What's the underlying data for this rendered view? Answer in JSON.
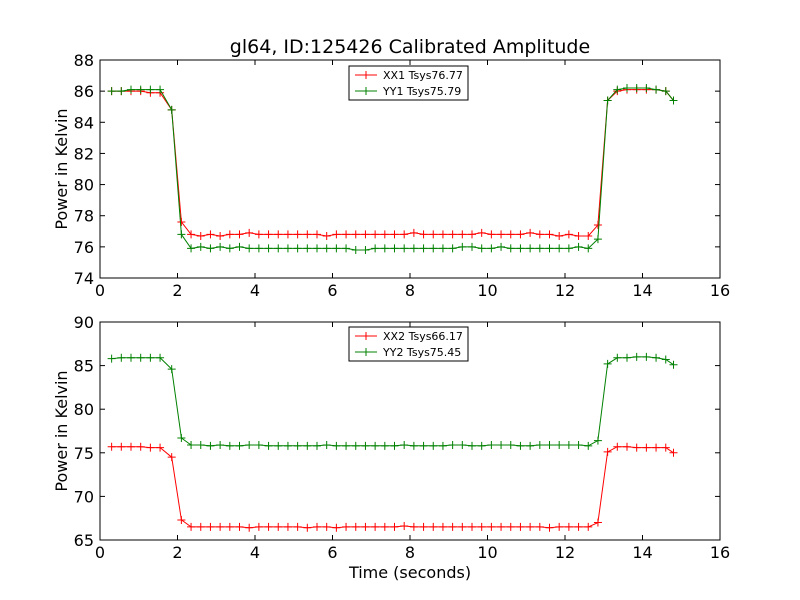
{
  "figure": {
    "title": "gl64, ID:125426 Calibrated Amplitude",
    "xlabel": "Time (seconds)"
  },
  "chart_data": [
    {
      "type": "line",
      "ylabel": "Power in Kelvin",
      "xlim": [
        0,
        16
      ],
      "ylim": [
        74,
        88
      ],
      "xticks": [
        0,
        2,
        4,
        6,
        8,
        10,
        12,
        14,
        16
      ],
      "yticks": [
        74,
        76,
        78,
        80,
        82,
        84,
        86,
        88
      ],
      "legend_position": "top-center",
      "grid": false,
      "x": [
        0.3,
        0.55,
        0.8,
        1.05,
        1.3,
        1.55,
        1.85,
        2.1,
        2.35,
        2.6,
        2.85,
        3.1,
        3.35,
        3.6,
        3.85,
        4.1,
        4.35,
        4.6,
        4.85,
        5.1,
        5.35,
        5.6,
        5.85,
        6.1,
        6.35,
        6.6,
        6.85,
        7.1,
        7.35,
        7.6,
        7.85,
        8.1,
        8.35,
        8.6,
        8.85,
        9.1,
        9.35,
        9.6,
        9.85,
        10.1,
        10.35,
        10.6,
        10.85,
        11.1,
        11.35,
        11.6,
        11.85,
        12.1,
        12.35,
        12.6,
        12.85,
        13.1,
        13.35,
        13.6,
        13.85,
        14.1,
        14.35,
        14.6,
        14.8
      ],
      "series": [
        {
          "name": "XX1 Tsys76.77",
          "color": "#ff0000",
          "values": [
            86.0,
            86.0,
            86.0,
            86.0,
            85.9,
            85.9,
            84.8,
            77.6,
            76.8,
            76.7,
            76.8,
            76.7,
            76.8,
            76.8,
            76.9,
            76.8,
            76.8,
            76.8,
            76.8,
            76.8,
            76.8,
            76.8,
            76.7,
            76.8,
            76.8,
            76.8,
            76.8,
            76.8,
            76.8,
            76.8,
            76.8,
            76.9,
            76.8,
            76.8,
            76.8,
            76.8,
            76.8,
            76.8,
            76.9,
            76.8,
            76.8,
            76.8,
            76.8,
            76.9,
            76.8,
            76.8,
            76.7,
            76.8,
            76.7,
            76.7,
            77.4,
            85.4,
            86.0,
            86.1,
            86.1,
            86.1,
            86.1,
            86.0,
            85.4
          ]
        },
        {
          "name": "YY1 Tsys75.79",
          "color": "#008000",
          "values": [
            86.0,
            86.0,
            86.1,
            86.1,
            86.1,
            86.1,
            84.8,
            76.8,
            75.9,
            76.0,
            75.9,
            76.0,
            75.9,
            76.0,
            75.9,
            75.9,
            75.9,
            75.9,
            75.9,
            75.9,
            75.9,
            75.9,
            75.9,
            75.9,
            75.9,
            75.8,
            75.8,
            75.9,
            75.9,
            75.9,
            75.9,
            75.9,
            75.9,
            75.9,
            75.9,
            75.9,
            76.0,
            76.0,
            75.9,
            75.9,
            76.0,
            75.9,
            75.9,
            75.9,
            75.9,
            75.9,
            75.9,
            75.9,
            76.0,
            75.9,
            76.5,
            85.4,
            86.1,
            86.2,
            86.2,
            86.2,
            86.1,
            86.0,
            85.4
          ]
        }
      ]
    },
    {
      "type": "line",
      "ylabel": "Power in Kelvin",
      "xlabel": "Time (seconds)",
      "xlim": [
        0,
        16
      ],
      "ylim": [
        65,
        90
      ],
      "xticks": [
        0,
        2,
        4,
        6,
        8,
        10,
        12,
        14,
        16
      ],
      "yticks": [
        65,
        70,
        75,
        80,
        85,
        90
      ],
      "legend_position": "top-center",
      "grid": false,
      "x": [
        0.3,
        0.55,
        0.8,
        1.05,
        1.3,
        1.55,
        1.85,
        2.1,
        2.35,
        2.6,
        2.85,
        3.1,
        3.35,
        3.6,
        3.85,
        4.1,
        4.35,
        4.6,
        4.85,
        5.1,
        5.35,
        5.6,
        5.85,
        6.1,
        6.35,
        6.6,
        6.85,
        7.1,
        7.35,
        7.6,
        7.85,
        8.1,
        8.35,
        8.6,
        8.85,
        9.1,
        9.35,
        9.6,
        9.85,
        10.1,
        10.35,
        10.6,
        10.85,
        11.1,
        11.35,
        11.6,
        11.85,
        12.1,
        12.35,
        12.6,
        12.85,
        13.1,
        13.35,
        13.6,
        13.85,
        14.1,
        14.35,
        14.6,
        14.8
      ],
      "series": [
        {
          "name": "XX2 Tsys66.17",
          "color": "#ff0000",
          "values": [
            75.7,
            75.7,
            75.7,
            75.7,
            75.6,
            75.6,
            74.5,
            67.3,
            66.5,
            66.5,
            66.5,
            66.5,
            66.5,
            66.5,
            66.4,
            66.5,
            66.5,
            66.5,
            66.5,
            66.5,
            66.4,
            66.5,
            66.5,
            66.4,
            66.5,
            66.5,
            66.5,
            66.5,
            66.5,
            66.5,
            66.6,
            66.5,
            66.5,
            66.5,
            66.5,
            66.5,
            66.5,
            66.5,
            66.5,
            66.5,
            66.5,
            66.5,
            66.5,
            66.5,
            66.5,
            66.4,
            66.5,
            66.5,
            66.5,
            66.5,
            67.0,
            75.1,
            75.7,
            75.7,
            75.6,
            75.6,
            75.6,
            75.6,
            75.0
          ]
        },
        {
          "name": "YY2 Tsys75.45",
          "color": "#008000",
          "values": [
            85.8,
            85.9,
            85.9,
            85.9,
            85.9,
            85.9,
            84.6,
            76.7,
            75.9,
            75.9,
            75.8,
            75.9,
            75.8,
            75.8,
            75.9,
            75.9,
            75.8,
            75.8,
            75.8,
            75.8,
            75.8,
            75.8,
            75.9,
            75.8,
            75.8,
            75.8,
            75.8,
            75.8,
            75.8,
            75.8,
            75.9,
            75.8,
            75.8,
            75.8,
            75.8,
            75.9,
            75.9,
            75.8,
            75.8,
            75.9,
            75.9,
            75.9,
            75.8,
            75.8,
            75.9,
            75.9,
            75.9,
            75.9,
            75.9,
            75.8,
            76.4,
            85.2,
            85.9,
            85.9,
            86.0,
            86.0,
            85.9,
            85.7,
            85.1
          ]
        }
      ]
    }
  ]
}
